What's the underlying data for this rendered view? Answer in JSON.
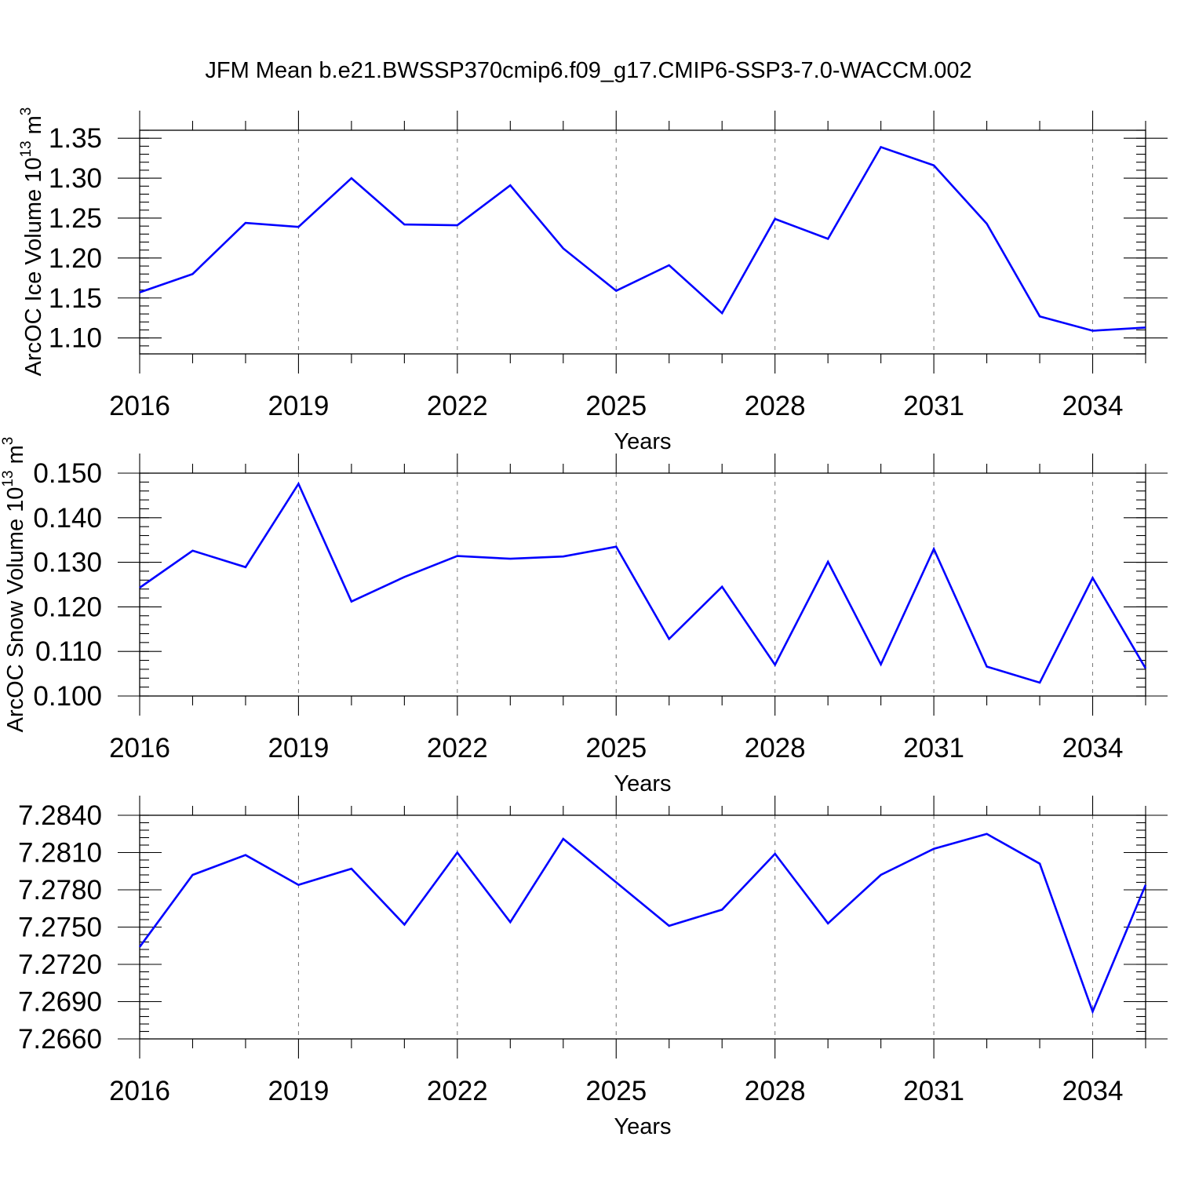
{
  "title": "JFM Mean b.e21.BWSSP370cmip6.f09_g17.CMIP6-SSP3-7.0-WACCM.002",
  "colors": {
    "line": "#0000ff",
    "grid": "#777777"
  },
  "chart_data": [
    {
      "type": "line",
      "xlabel": "Years",
      "ylabel": "ArcOC Ice Volume 10",
      "ylabel_exp": "13",
      "ylabel_unit": "m",
      "ylabel_unit_exp": "3",
      "xlim": [
        2016,
        2035
      ],
      "ylim": [
        1.08,
        1.36
      ],
      "yticks": [
        "1.10",
        "1.15",
        "1.20",
        "1.25",
        "1.30",
        "1.35"
      ],
      "yminor_step": 0.01,
      "xticks": [
        "2016",
        "2019",
        "2022",
        "2025",
        "2028",
        "2031",
        "2034"
      ],
      "grid": "vertical-dashed",
      "x": [
        2016,
        2017,
        2018,
        2019,
        2020,
        2021,
        2022,
        2023,
        2024,
        2025,
        2026,
        2027,
        2028,
        2029,
        2030,
        2031,
        2032,
        2033,
        2034,
        2035
      ],
      "values": [
        1.157,
        1.18,
        1.244,
        1.239,
        1.3,
        1.242,
        1.241,
        1.291,
        1.212,
        1.159,
        1.191,
        1.131,
        1.249,
        1.224,
        1.339,
        1.316,
        1.243,
        1.127,
        1.109,
        1.113
      ]
    },
    {
      "type": "line",
      "xlabel": "Years",
      "ylabel": "ArcOC Snow Volume 10",
      "ylabel_exp": "13",
      "ylabel_unit": "m",
      "ylabel_unit_exp": "3",
      "xlim": [
        2016,
        2035
      ],
      "ylim": [
        0.1,
        0.15
      ],
      "yticks": [
        "0.100",
        "0.110",
        "0.120",
        "0.130",
        "0.140",
        "0.150"
      ],
      "yminor_step": 0.002,
      "xticks": [
        "2016",
        "2019",
        "2022",
        "2025",
        "2028",
        "2031",
        "2034"
      ],
      "grid": "vertical-dashed",
      "x": [
        2016,
        2017,
        2018,
        2019,
        2020,
        2021,
        2022,
        2023,
        2024,
        2025,
        2026,
        2027,
        2028,
        2029,
        2030,
        2031,
        2032,
        2033,
        2034,
        2035
      ],
      "values": [
        0.1243,
        0.1326,
        0.1289,
        0.1476,
        0.1212,
        0.1267,
        0.1314,
        0.1308,
        0.1313,
        0.1335,
        0.1128,
        0.1245,
        0.107,
        0.1301,
        0.1071,
        0.133,
        0.1066,
        0.103,
        0.1265,
        0.1062
      ]
    },
    {
      "type": "line",
      "xlabel": "Years",
      "ylabel": "",
      "xlim": [
        2016,
        2035
      ],
      "ylim": [
        7.266,
        7.284
      ],
      "yticks": [
        "7.2660",
        "7.2690",
        "7.2720",
        "7.2750",
        "7.2780",
        "7.2810",
        "7.2840"
      ],
      "yminor_step": 0.0006,
      "xticks": [
        "2016",
        "2019",
        "2022",
        "2025",
        "2028",
        "2031",
        "2034"
      ],
      "grid": "vertical-dashed",
      "x": [
        2016,
        2017,
        2018,
        2019,
        2020,
        2021,
        2022,
        2023,
        2024,
        2025,
        2026,
        2027,
        2028,
        2029,
        2030,
        2031,
        2032,
        2033,
        2034,
        2035
      ],
      "values": [
        7.2734,
        7.2792,
        7.2808,
        7.2784,
        7.2797,
        7.2752,
        7.281,
        7.2754,
        7.2821,
        7.2786,
        7.2751,
        7.2764,
        7.2809,
        7.2753,
        7.2792,
        7.2813,
        7.2825,
        7.2801,
        7.2682,
        7.2784
      ]
    }
  ]
}
